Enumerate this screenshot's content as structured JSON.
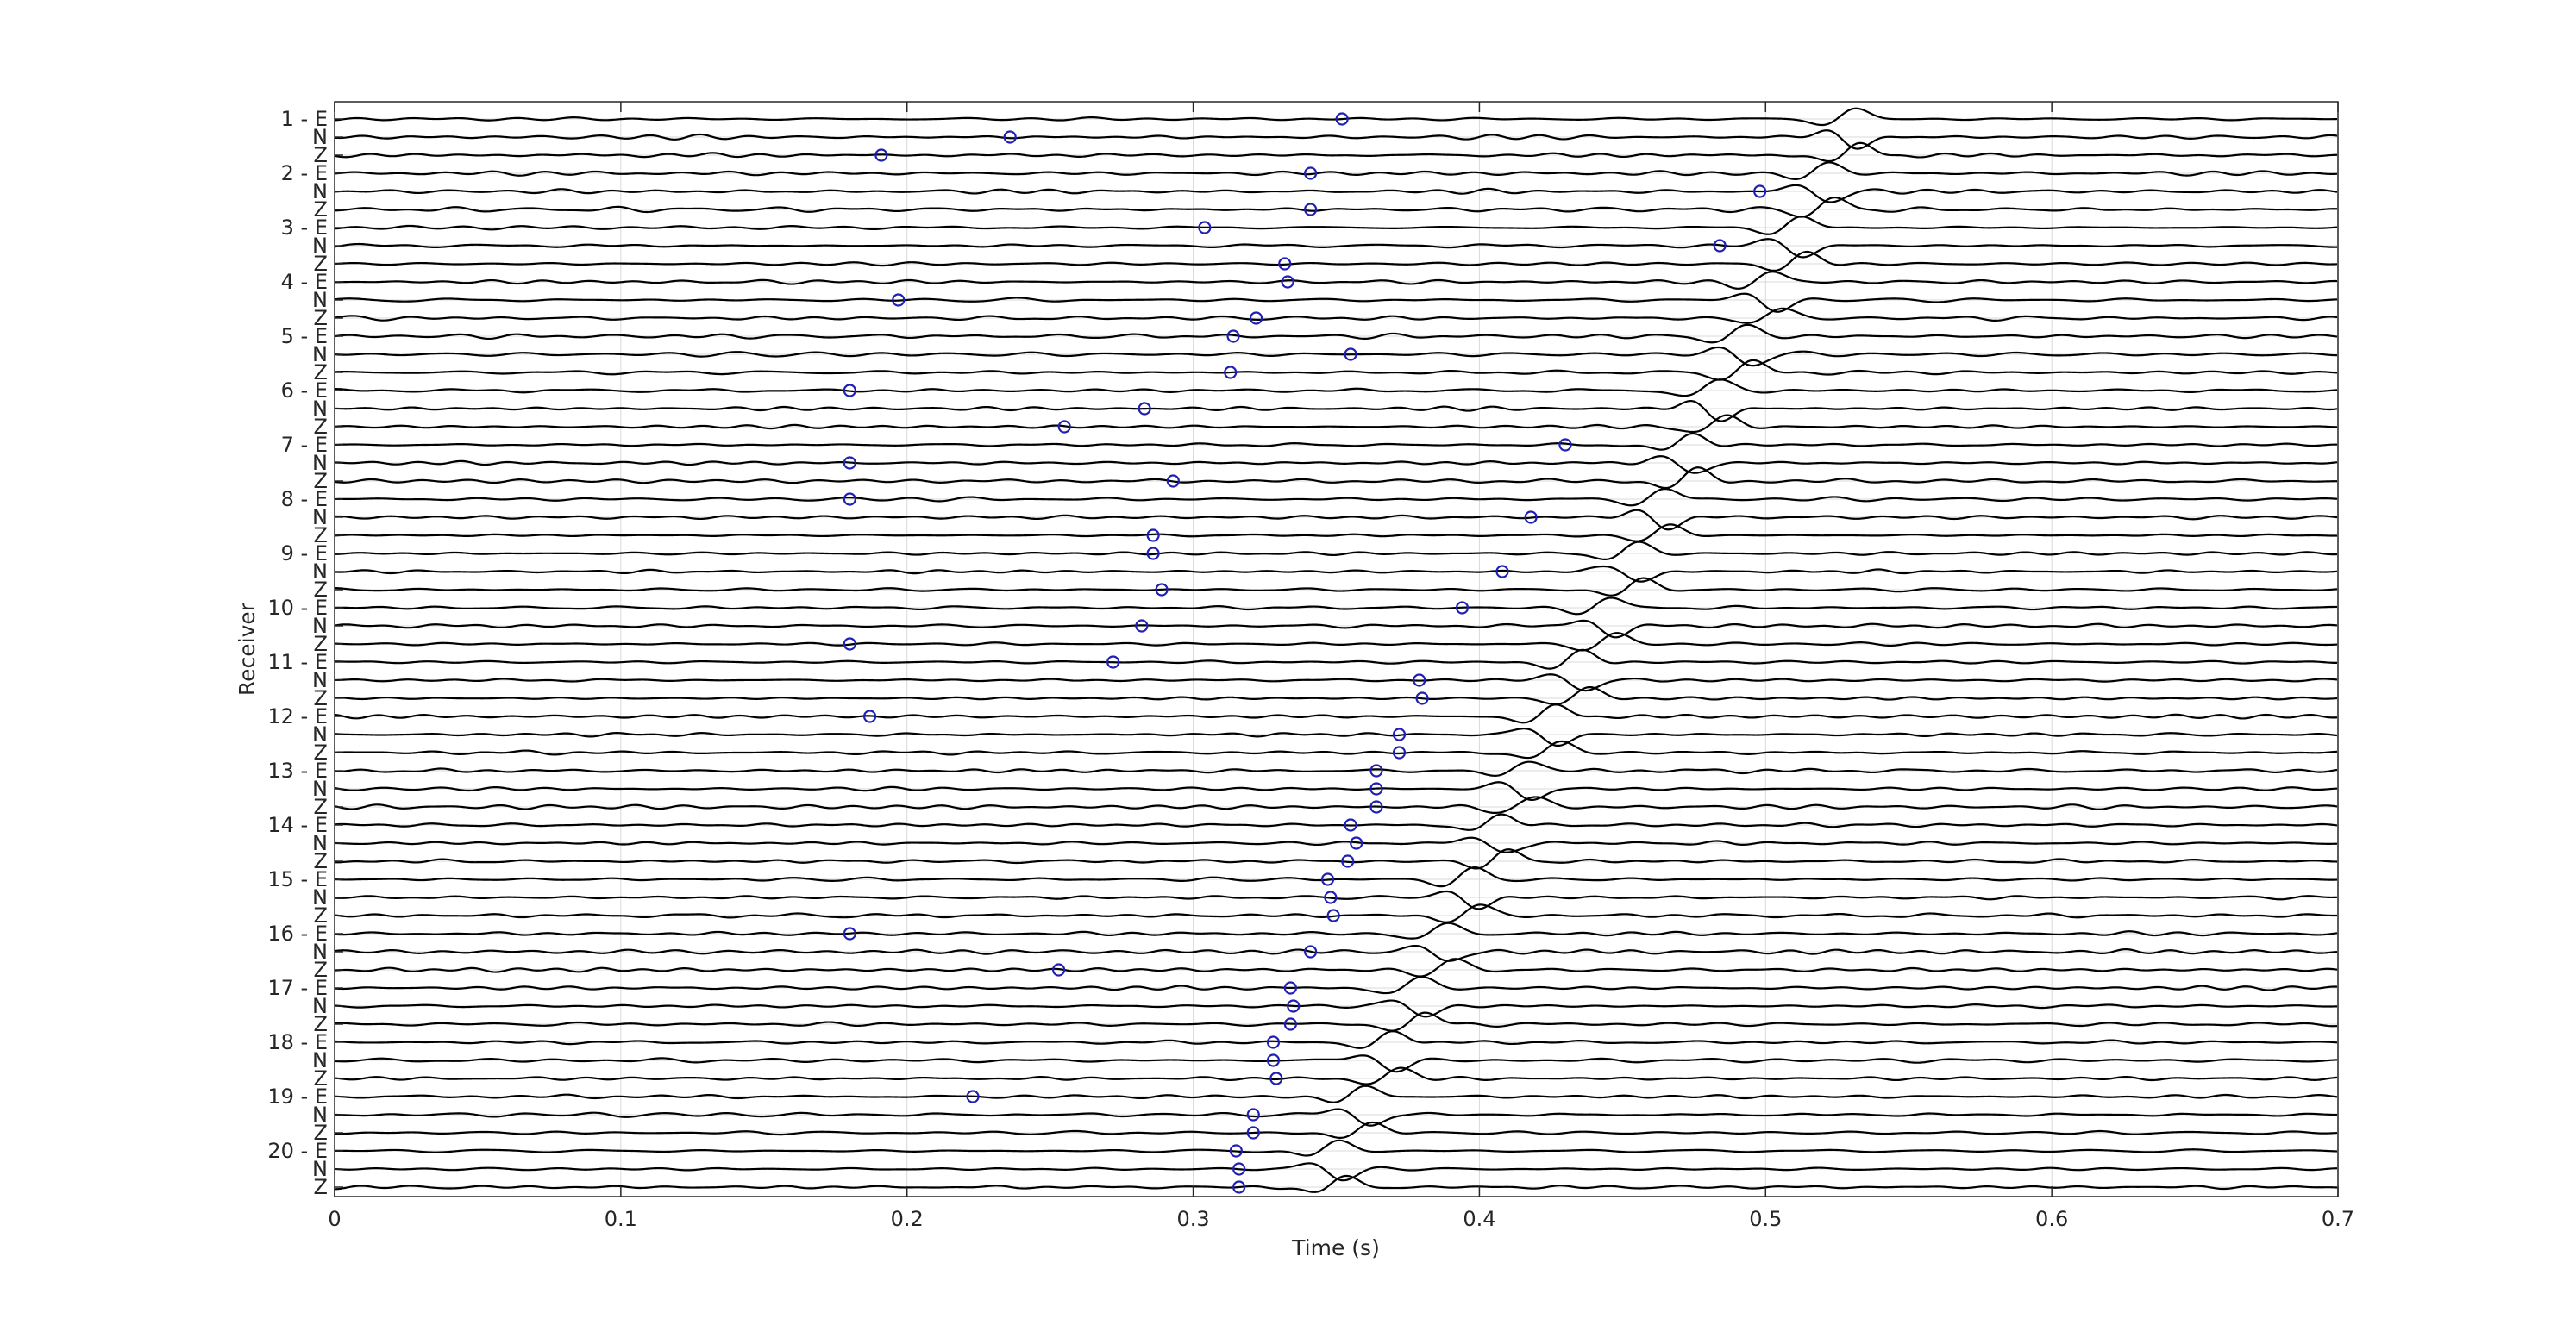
{
  "chart_data": {
    "type": "line",
    "title": "",
    "xlabel": "Time (s)",
    "ylabel": "Receiver",
    "xlim": [
      0,
      0.7
    ],
    "x_ticks": [
      "0",
      "0.1",
      "0.2",
      "0.3",
      "0.4",
      "0.5",
      "0.6",
      "0.7"
    ],
    "x_tick_values": [
      0,
      0.1,
      0.2,
      0.3,
      0.4,
      0.5,
      0.6,
      0.7
    ],
    "grid": true,
    "legend": "none",
    "trace_color": "#000000",
    "pick_color": "#1f1fb4",
    "grid_color": "#d9d9d9",
    "receivers": [
      {
        "label": "1 - E",
        "picks": [
          0.352,
          0.236,
          0.191
        ]
      },
      {
        "label": "2 - E",
        "picks": [
          0.341,
          0.498,
          0.341
        ]
      },
      {
        "label": "3 - E",
        "picks": [
          0.304,
          0.484,
          0.332
        ]
      },
      {
        "label": "4 - E",
        "picks": [
          0.333,
          0.197,
          0.322
        ]
      },
      {
        "label": "5 - E",
        "picks": [
          0.314,
          0.355,
          0.313
        ]
      },
      {
        "label": "6 - E",
        "picks": [
          0.18,
          0.283,
          0.255
        ]
      },
      {
        "label": "7 - E",
        "picks": [
          0.43,
          0.18,
          0.293
        ]
      },
      {
        "label": "8 - E",
        "picks": [
          0.18,
          0.418,
          0.286
        ]
      },
      {
        "label": "9 - E",
        "picks": [
          0.286,
          0.408,
          0.289
        ]
      },
      {
        "label": "10 - E",
        "picks": [
          0.394,
          0.282,
          0.18
        ]
      },
      {
        "label": "11 - E",
        "picks": [
          0.272,
          0.379,
          0.38
        ]
      },
      {
        "label": "12 - E",
        "picks": [
          0.187,
          0.372,
          0.372
        ]
      },
      {
        "label": "13 - E",
        "picks": [
          0.364,
          0.364,
          0.364
        ]
      },
      {
        "label": "14 - E",
        "picks": [
          0.355,
          0.357,
          0.354
        ]
      },
      {
        "label": "15 - E",
        "picks": [
          0.347,
          0.348,
          0.349
        ]
      },
      {
        "label": "16 - E",
        "picks": [
          0.18,
          0.341,
          0.253
        ]
      },
      {
        "label": "17 - E",
        "picks": [
          0.334,
          0.335,
          0.334
        ]
      },
      {
        "label": "18 - E",
        "picks": [
          0.328,
          0.328,
          0.329
        ]
      },
      {
        "label": "19 - E",
        "picks": [
          0.223,
          0.321,
          0.321
        ]
      },
      {
        "label": "20 - E",
        "picks": [
          0.315,
          0.316,
          0.316
        ]
      }
    ],
    "component_labels": [
      "N",
      "Z"
    ],
    "arrival": {
      "start": 0.528,
      "slope_per_receiver": -0.0095
    }
  }
}
